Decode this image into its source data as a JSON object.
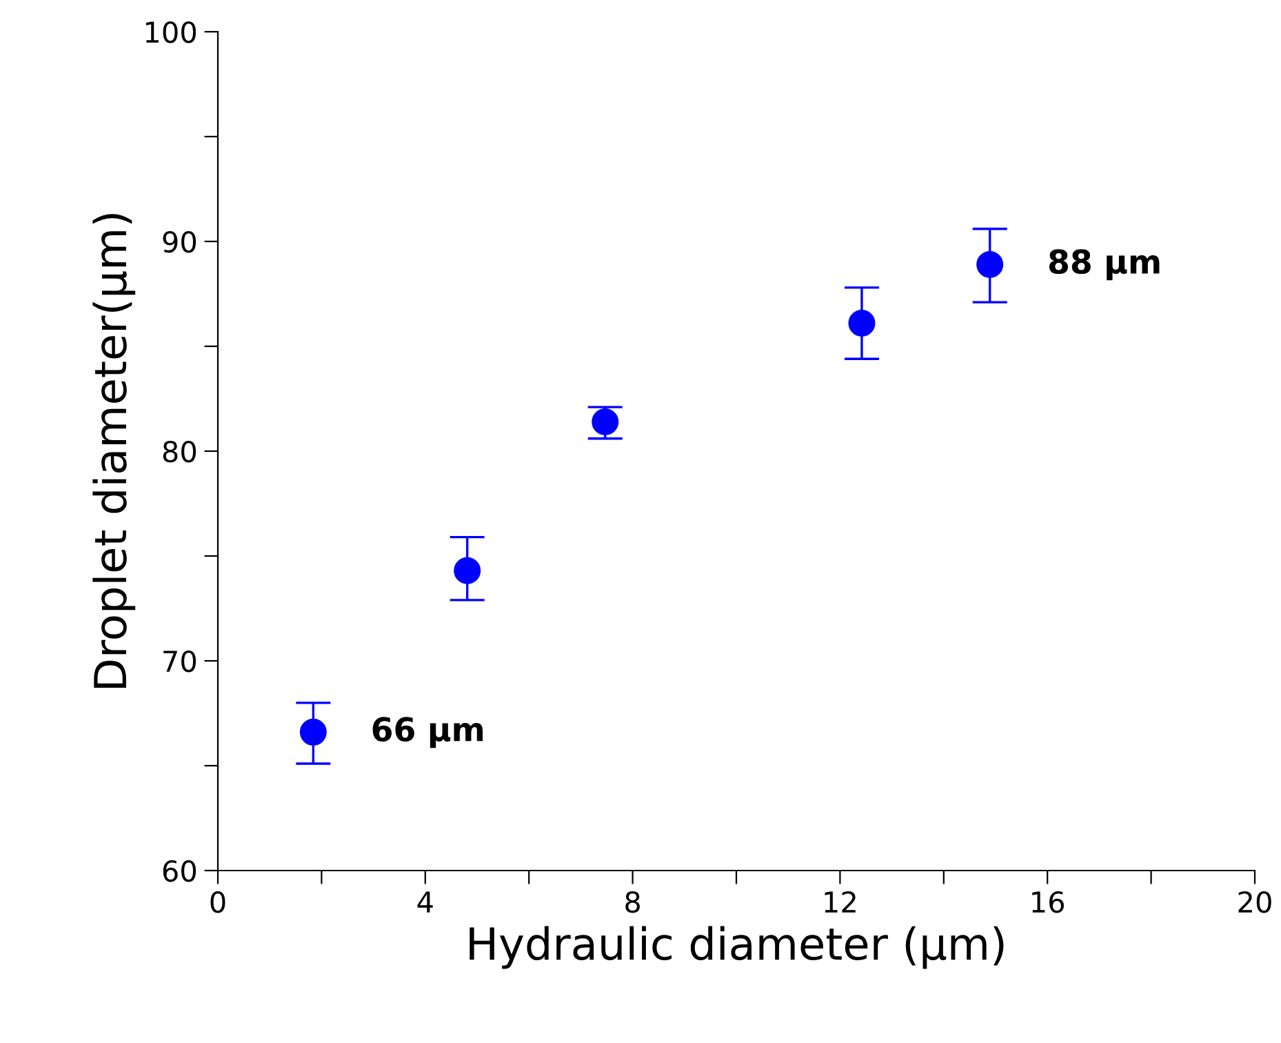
{
  "chart_data": {
    "type": "scatter",
    "xlabel": "Hydraulic diameter (µm)",
    "ylabel": "Droplet diameter(µm)",
    "x": [
      1.84,
      4.81,
      7.47,
      12.42,
      14.89
    ],
    "series": [
      {
        "color": "#0000ff",
        "values": [
          66.6,
          74.3,
          81.4,
          86.1,
          88.9
        ],
        "errors": [
          [
            65.1,
            68.0
          ],
          [
            72.9,
            75.9
          ],
          [
            80.6,
            82.1
          ],
          [
            84.4,
            87.8
          ],
          [
            87.1,
            90.6
          ]
        ]
      }
    ],
    "marker": "circle",
    "grid": false,
    "legend": false,
    "xlim": [
      0,
      20
    ],
    "xticks": [
      0,
      {
        "value": 2,
        "label": null
      },
      4,
      {
        "value": 6,
        "label": null
      },
      8,
      {
        "value": 10,
        "label": null
      },
      12,
      {
        "value": 14,
        "label": null
      },
      16,
      {
        "value": 18,
        "label": null
      },
      20
    ],
    "ylim": [
      60,
      100
    ],
    "yticks": [
      60,
      {
        "value": 65,
        "label": null
      },
      70,
      {
        "value": 75,
        "label": null
      },
      80,
      {
        "value": 85,
        "label": null
      },
      90,
      {
        "value": 95,
        "label": null
      },
      100
    ],
    "annotations": [
      {
        "text": "66 µm",
        "x": 1.84,
        "y": 66.6
      },
      {
        "text": "88 µm",
        "x": 14.89,
        "y": 88.9
      }
    ]
  }
}
